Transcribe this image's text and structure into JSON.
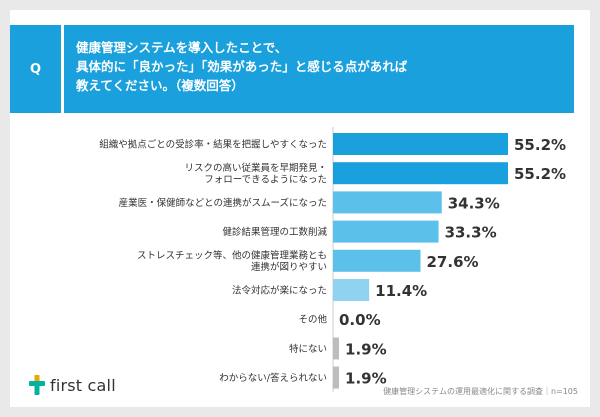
{
  "question": {
    "badge": "Q",
    "lines": [
      "健康管理システムを導入したことで、",
      "具体的に「良かった」「効果があった」と感じる点があれば",
      "教えてください。（複数回答）"
    ]
  },
  "colors": {
    "header": "#1aa0dc",
    "bar_dark": "#1aa0dc",
    "bar_mid": "#5bc0ea",
    "bar_light": "#8fd3f1",
    "bar_gray": "#bdbdbd",
    "logo_accent": "#00b4a0"
  },
  "chart_data": {
    "type": "bar",
    "orientation": "horizontal",
    "categories": [
      [
        "組織や拠点ごとの受診率・結果を把握しやすくなった"
      ],
      [
        "リスクの高い従業員を早期発見・",
        "フォローできるようになった"
      ],
      [
        "産業医・保健師などとの連携がスムーズになった"
      ],
      [
        "健診結果管理の工数削減"
      ],
      [
        "ストレスチェック等、他の健康管理業務とも",
        "連携が図りやすい"
      ],
      [
        "法令対応が楽になった"
      ],
      [
        "その他"
      ],
      [
        "特にない"
      ],
      [
        "わからない/答えられない"
      ]
    ],
    "values": [
      55.2,
      55.2,
      34.3,
      33.3,
      27.6,
      11.4,
      0.0,
      1.9,
      1.9
    ],
    "value_labels": [
      "55.2%",
      "55.2%",
      "34.3%",
      "33.3%",
      "27.6%",
      "11.4%",
      "0.0%",
      "1.9%",
      "1.9%"
    ],
    "xlim": [
      0,
      60
    ],
    "grid": false,
    "legend": "none"
  },
  "footer": {
    "logo_text": "first call",
    "source": "健康管理システムの運用最適化に関する調査｜n=105"
  }
}
